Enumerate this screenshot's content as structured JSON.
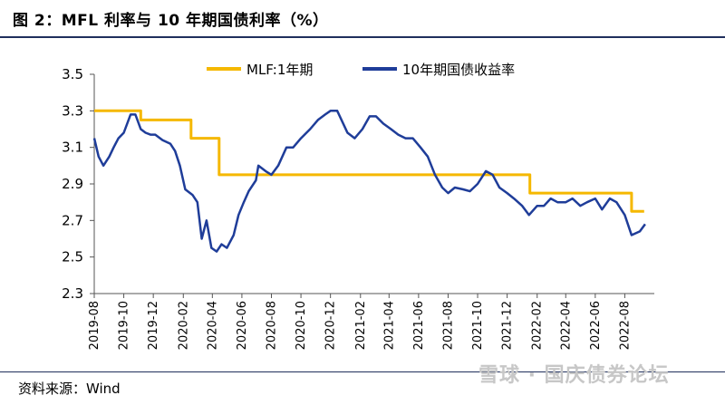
{
  "header": {
    "title": "图 2：MFL 利率与 10 年期国债利率（%）"
  },
  "footer": {
    "source": "资料来源：Wind",
    "watermark": "雪球 · 国庆债券论坛"
  },
  "chart_data": {
    "type": "line",
    "title": "",
    "xlabel": "",
    "ylabel": "",
    "ylim": [
      2.3,
      3.5
    ],
    "yticks": [
      "2.3",
      "2.5",
      "2.7",
      "2.9",
      "3.1",
      "3.3",
      "3.5"
    ],
    "xlim": [
      "2019-08-01",
      "2022-10-01"
    ],
    "xticks": [
      "2019-08",
      "2019-10",
      "2019-12",
      "2020-02",
      "2020-04",
      "2020-06",
      "2020-08",
      "2020-10",
      "2020-12",
      "2021-02",
      "2021-04",
      "2021-06",
      "2021-08",
      "2021-10",
      "2021-12",
      "2022-02",
      "2022-04",
      "2022-06",
      "2022-08"
    ],
    "grid": false,
    "legend_position": "top-center",
    "series": [
      {
        "name": "MLF:1年期",
        "color": "#f5b800",
        "step": true,
        "x": [
          "2019-08-01",
          "2019-11-05",
          "2020-02-17",
          "2020-04-15",
          "2021-12-15",
          "2022-01-17",
          "2022-08-15",
          "2022-09-10"
        ],
        "values": [
          3.3,
          3.25,
          3.15,
          2.95,
          2.95,
          2.85,
          2.75,
          2.75
        ]
      },
      {
        "name": "10年期国债收益率",
        "color": "#1f3d99",
        "x": [
          "2019-08-01",
          "2019-08-10",
          "2019-08-20",
          "2019-09-01",
          "2019-09-10",
          "2019-09-20",
          "2019-10-01",
          "2019-10-15",
          "2019-10-25",
          "2019-11-05",
          "2019-11-15",
          "2019-11-25",
          "2019-12-05",
          "2019-12-20",
          "2020-01-05",
          "2020-01-15",
          "2020-01-25",
          "2020-02-05",
          "2020-02-20",
          "2020-03-01",
          "2020-03-10",
          "2020-03-20",
          "2020-03-30",
          "2020-04-10",
          "2020-04-20",
          "2020-05-01",
          "2020-05-15",
          "2020-05-25",
          "2020-06-05",
          "2020-06-15",
          "2020-06-30",
          "2020-07-05",
          "2020-07-20",
          "2020-08-01",
          "2020-08-15",
          "2020-09-01",
          "2020-09-15",
          "2020-10-01",
          "2020-10-20",
          "2020-11-05",
          "2020-11-20",
          "2020-12-01",
          "2020-12-15",
          "2021-01-05",
          "2021-01-20",
          "2021-02-05",
          "2021-02-20",
          "2021-03-05",
          "2021-03-20",
          "2021-04-05",
          "2021-04-20",
          "2021-05-05",
          "2021-05-20",
          "2021-06-05",
          "2021-06-20",
          "2021-07-05",
          "2021-07-20",
          "2021-08-01",
          "2021-08-15",
          "2021-09-01",
          "2021-09-15",
          "2021-10-01",
          "2021-10-18",
          "2021-11-01",
          "2021-11-15",
          "2021-12-01",
          "2021-12-15",
          "2022-01-01",
          "2022-01-15",
          "2022-02-01",
          "2022-02-15",
          "2022-03-01",
          "2022-03-15",
          "2022-04-01",
          "2022-04-15",
          "2022-05-01",
          "2022-05-15",
          "2022-06-01",
          "2022-06-15",
          "2022-07-01",
          "2022-07-15",
          "2022-08-01",
          "2022-08-15",
          "2022-09-01",
          "2022-09-12"
        ],
        "values": [
          3.15,
          3.05,
          3.0,
          3.05,
          3.1,
          3.15,
          3.18,
          3.28,
          3.28,
          3.2,
          3.18,
          3.17,
          3.17,
          3.14,
          3.12,
          3.08,
          3.0,
          2.87,
          2.84,
          2.8,
          2.6,
          2.7,
          2.55,
          2.53,
          2.57,
          2.55,
          2.62,
          2.73,
          2.8,
          2.86,
          2.92,
          3.0,
          2.97,
          2.95,
          3.0,
          3.1,
          3.1,
          3.15,
          3.2,
          3.25,
          3.28,
          3.3,
          3.3,
          3.18,
          3.15,
          3.2,
          3.27,
          3.27,
          3.23,
          3.2,
          3.17,
          3.15,
          3.15,
          3.1,
          3.05,
          2.95,
          2.88,
          2.85,
          2.88,
          2.87,
          2.86,
          2.9,
          2.97,
          2.95,
          2.88,
          2.85,
          2.82,
          2.78,
          2.73,
          2.78,
          2.78,
          2.82,
          2.8,
          2.8,
          2.82,
          2.78,
          2.8,
          2.82,
          2.76,
          2.82,
          2.8,
          2.73,
          2.62,
          2.64,
          2.68
        ]
      }
    ]
  }
}
